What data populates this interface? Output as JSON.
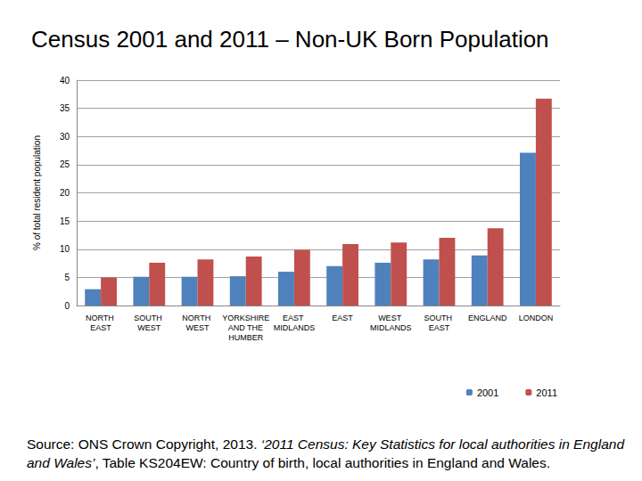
{
  "chart_data": {
    "type": "bar",
    "title": "Census 2001 and 2011 – Non-UK Born Population",
    "y_label": "% of total resident population",
    "categories": [
      "NORTH EAST",
      "SOUTH WEST",
      "NORTH WEST",
      "YORKSHIRE AND THE HUMBER",
      "EAST MIDLANDS",
      "EAST",
      "WEST MIDLANDS",
      "SOUTH EAST",
      "ENGLAND",
      "LONDON"
    ],
    "series": [
      {
        "name": "2001",
        "color": "#4f81bd",
        "values": [
          2.9,
          5.1,
          5.1,
          5.2,
          6.0,
          7.0,
          7.6,
          8.2,
          8.9,
          27.1
        ]
      },
      {
        "name": "2011",
        "color": "#c0504d",
        "values": [
          5.0,
          7.6,
          8.2,
          8.7,
          9.9,
          10.9,
          11.2,
          12.0,
          13.7,
          36.7
        ]
      }
    ],
    "ylim": [
      0,
      40
    ],
    "yticks": [
      0,
      5,
      10,
      15,
      20,
      25,
      30,
      35,
      40
    ],
    "grid": true,
    "legend": "lower right",
    "source": [
      {
        "text": "Source: ONS Crown Copyright, 2013. ",
        "style": "normal"
      },
      {
        "text": "‘2011 Census: Key Statistics for local authorities in England and Wales’",
        "style": "italic"
      },
      {
        "text": ", Table KS204EW: Country of birth, local authorities in England and Wales.",
        "style": "normal"
      }
    ]
  }
}
